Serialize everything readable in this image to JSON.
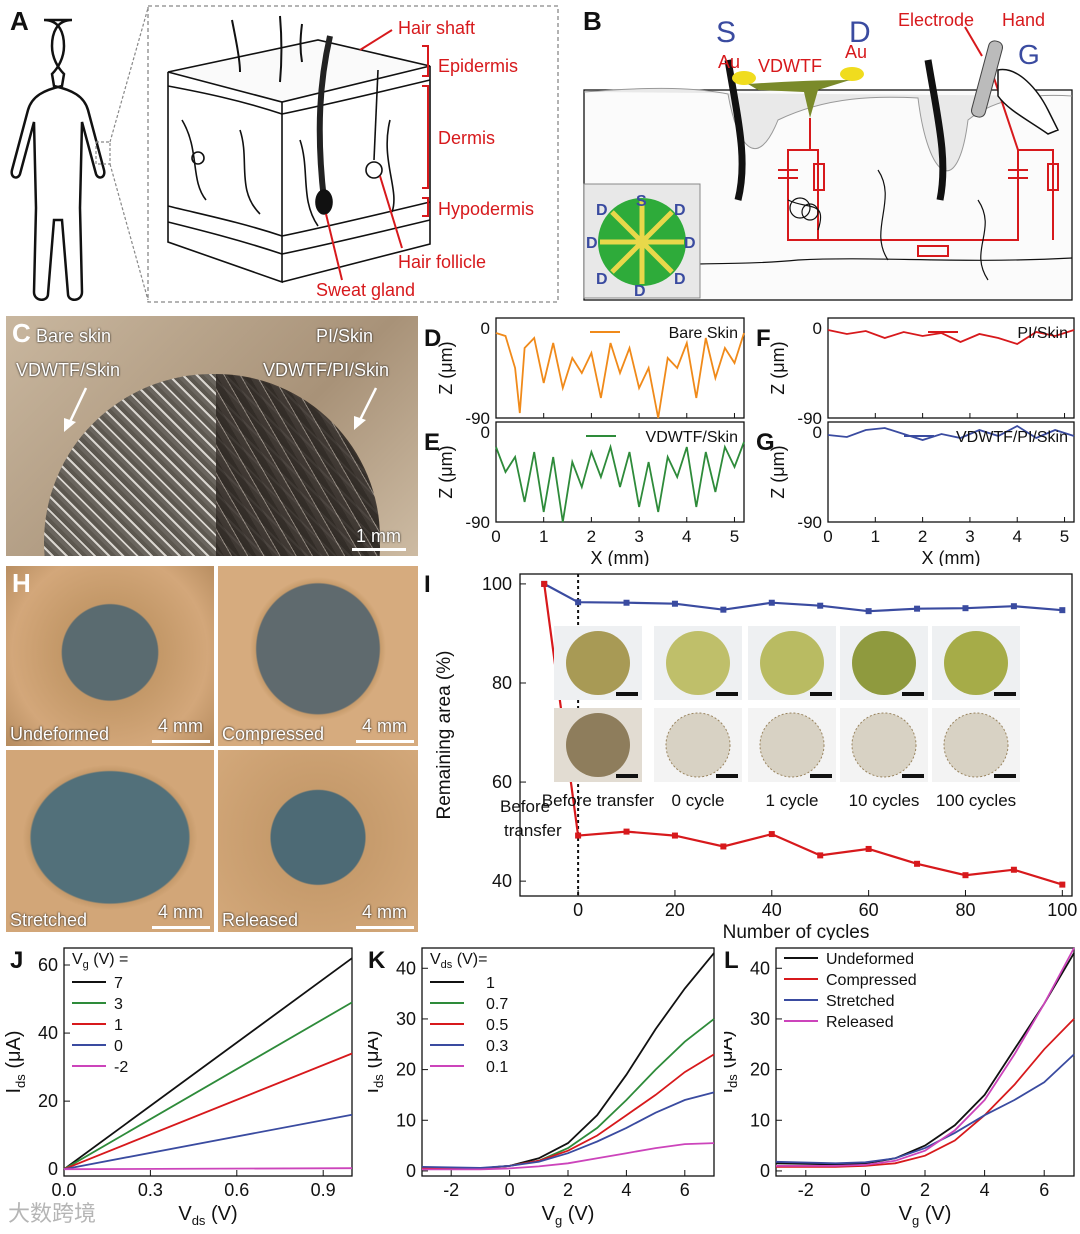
{
  "panel_letters": {
    "A": "A",
    "B": "B",
    "C": "C",
    "D": "D",
    "E": "E",
    "F": "F",
    "G": "G",
    "H": "H",
    "I": "I",
    "J": "J",
    "K": "K",
    "L": "L"
  },
  "panelA": {
    "labels": [
      "Hair shaft",
      "Epidermis",
      "Dermis",
      "Hypodermis",
      "Hair follicle",
      "Sweat gland"
    ],
    "color": "#d7191c"
  },
  "panelB": {
    "S": "S",
    "D": "D",
    "G": "G",
    "au_left": "Au",
    "au_right": "Au",
    "vdwtf": "VDWTF",
    "electrode": "Electrode",
    "hand": "Hand",
    "inset_letters": [
      "S",
      "D",
      "D",
      "D",
      "D",
      "D",
      "D",
      "D"
    ]
  },
  "panelC": {
    "tl1": "Bare skin",
    "tl2": "VDWTF/Skin",
    "tr1": "PI/Skin",
    "tr2": "VDWTF/PI/Skin",
    "scale": "1 mm"
  },
  "panelH": {
    "captions": [
      "Undeformed",
      "Compressed",
      "Stretched",
      "Released"
    ],
    "scale": "4 mm"
  },
  "profiles": {
    "ylabel": "Z (μm)",
    "xlabel": "X (mm)",
    "yticks": [
      "0",
      "-90"
    ],
    "xticks": [
      "0",
      "1",
      "2",
      "3",
      "4",
      "5"
    ]
  },
  "chart_data": [
    {
      "panel": "D",
      "type": "line",
      "series": [
        {
          "name": "Bare Skin",
          "color": "#f08a1a",
          "x": [
            0,
            0.2,
            0.4,
            0.5,
            0.6,
            0.8,
            1.0,
            1.2,
            1.4,
            1.6,
            1.8,
            2.0,
            2.2,
            2.4,
            2.6,
            2.8,
            3.0,
            3.2,
            3.4,
            3.6,
            3.8,
            4.0,
            4.2,
            4.4,
            4.6,
            4.8,
            5.0,
            5.2
          ],
          "y": [
            -5,
            -8,
            -40,
            -85,
            -20,
            -10,
            -55,
            -15,
            -60,
            -30,
            -45,
            -25,
            -70,
            -15,
            -45,
            -20,
            -60,
            -40,
            -90,
            -30,
            -40,
            -15,
            -70,
            -10,
            -50,
            -20,
            -35,
            -5
          ]
        }
      ],
      "xlim": [
        0,
        5.2
      ],
      "ylim": [
        -90,
        10
      ]
    },
    {
      "panel": "E",
      "type": "line",
      "series": [
        {
          "name": "VDWTF/Skin",
          "color": "#2e8b3a",
          "x": [
            0,
            0.2,
            0.4,
            0.6,
            0.8,
            1.0,
            1.2,
            1.4,
            1.6,
            1.8,
            2.0,
            2.2,
            2.4,
            2.6,
            2.8,
            3.0,
            3.2,
            3.4,
            3.6,
            3.8,
            4.0,
            4.2,
            4.4,
            4.6,
            4.8,
            5.0,
            5.2
          ],
          "y": [
            -15,
            -40,
            -25,
            -70,
            -20,
            -80,
            -25,
            -90,
            -30,
            -55,
            -20,
            -45,
            -15,
            -55,
            -20,
            -75,
            -30,
            -80,
            -25,
            -45,
            -15,
            -75,
            -20,
            -60,
            -15,
            -35,
            -10
          ]
        }
      ],
      "xlim": [
        0,
        5.2
      ],
      "ylim": [
        -90,
        10
      ]
    },
    {
      "panel": "F",
      "type": "line",
      "series": [
        {
          "name": "PI/Skin",
          "color": "#d7191c",
          "x": [
            0,
            0.4,
            0.8,
            1.2,
            1.6,
            2.0,
            2.4,
            2.8,
            3.2,
            3.6,
            4.0,
            4.4,
            4.8,
            5.2
          ],
          "y": [
            -2,
            -6,
            -3,
            -10,
            -4,
            -8,
            -5,
            -14,
            -6,
            -10,
            -16,
            -4,
            -8,
            -2
          ]
        }
      ],
      "xlim": [
        0,
        5.2
      ],
      "ylim": [
        -90,
        10
      ]
    },
    {
      "panel": "G",
      "type": "line",
      "series": [
        {
          "name": "VDWTF/PI/Skin",
          "color": "#3a4ba0",
          "x": [
            0,
            0.4,
            0.8,
            1.2,
            1.6,
            2.0,
            2.4,
            2.8,
            3.2,
            3.6,
            4.0,
            4.4,
            4.8,
            5.2
          ],
          "y": [
            -3,
            -5,
            2,
            4,
            -2,
            -8,
            -2,
            -6,
            2,
            -4,
            6,
            -6,
            2,
            -4
          ]
        }
      ],
      "xlim": [
        0,
        5.2
      ],
      "ylim": [
        -90,
        10
      ]
    },
    {
      "panel": "I",
      "type": "line",
      "xlabel": "Number of cycles",
      "ylabel": "Remaining area (%)",
      "xlim": [
        -12,
        102
      ],
      "ylim": [
        37,
        102
      ],
      "xticks": [
        0,
        20,
        40,
        60,
        80,
        100
      ],
      "yticks": [
        40,
        60,
        80,
        100
      ],
      "vline_x": 0,
      "annotation": "Before\ntransfer",
      "series": [
        {
          "color": "#3a4ba0",
          "x": [
            -7,
            0,
            10,
            20,
            30,
            40,
            50,
            60,
            70,
            80,
            90,
            100
          ],
          "y": [
            100,
            96.3,
            96.2,
            96.0,
            94.8,
            96.2,
            95.6,
            94.5,
            95.0,
            95.1,
            95.5,
            94.7
          ]
        },
        {
          "color": "#d7191c",
          "x": [
            -7,
            0,
            10,
            20,
            30,
            40,
            50,
            60,
            70,
            80,
            90,
            100
          ],
          "y": [
            100,
            49.2,
            50.0,
            49.2,
            47.0,
            49.5,
            45.2,
            46.5,
            43.5,
            41.2,
            42.3,
            39.3
          ]
        }
      ],
      "inset_captions": [
        "Before transfer",
        "0 cycle",
        "1 cycle",
        "10 cycles",
        "100 cycles"
      ]
    },
    {
      "panel": "J",
      "type": "line",
      "xlabel_main": "V",
      "xlabel_sub": "ds",
      "xlabel_unit": " (V)",
      "ylabel_main": "I",
      "ylabel_sub": "ds",
      "ylabel_unit": " (μA)",
      "legend_title_main": "V",
      "legend_title_sub": "g",
      "legend_title_rest": " (V) =",
      "xlim": [
        0,
        1.0
      ],
      "ylim": [
        -2,
        65
      ],
      "xticks": [
        "0.0",
        "0.3",
        "0.6",
        "0.9"
      ],
      "yticks": [
        "0",
        "20",
        "40",
        "60"
      ],
      "series": [
        {
          "name": "7",
          "color": "#111111",
          "x": [
            0,
            1.0
          ],
          "y": [
            0,
            62
          ]
        },
        {
          "name": "3",
          "color": "#2e8b3a",
          "x": [
            0,
            1.0
          ],
          "y": [
            0,
            49
          ]
        },
        {
          "name": "1",
          "color": "#d7191c",
          "x": [
            0,
            1.0
          ],
          "y": [
            0,
            34
          ]
        },
        {
          "name": "0",
          "color": "#3a4ba0",
          "x": [
            0,
            1.0
          ],
          "y": [
            0,
            16
          ]
        },
        {
          "name": "-2",
          "color": "#cc44bb",
          "x": [
            0,
            1.0
          ],
          "y": [
            0,
            0.3
          ]
        }
      ]
    },
    {
      "panel": "K",
      "type": "line",
      "xlabel_main": "V",
      "xlabel_sub": "g",
      "xlabel_unit": " (V)",
      "ylabel_main": "I",
      "ylabel_sub": "ds",
      "ylabel_unit": " (μA)",
      "legend_title_main": "V",
      "legend_title_sub": "ds",
      "legend_title_rest": " (V)=",
      "xlim": [
        -3,
        7
      ],
      "ylim": [
        -1,
        44
      ],
      "xticks": [
        "-2",
        "0",
        "2",
        "4",
        "6"
      ],
      "yticks": [
        "0",
        "10",
        "20",
        "30",
        "40"
      ],
      "series": [
        {
          "name": "1",
          "color": "#111111",
          "x": [
            -3,
            -1,
            0,
            1,
            2,
            3,
            4,
            5,
            6,
            7
          ],
          "y": [
            0.5,
            0.5,
            1,
            2.5,
            5.5,
            11,
            19,
            28,
            36,
            43
          ]
        },
        {
          "name": "0.7",
          "color": "#2e8b3a",
          "x": [
            -3,
            -1,
            0,
            1,
            2,
            3,
            4,
            5,
            6,
            7
          ],
          "y": [
            0.5,
            0.5,
            1,
            2,
            4.5,
            8.5,
            14,
            20,
            25.5,
            30
          ]
        },
        {
          "name": "0.5",
          "color": "#d7191c",
          "x": [
            -3,
            -1,
            0,
            1,
            2,
            3,
            4,
            5,
            6,
            7
          ],
          "y": [
            0.5,
            0.5,
            1,
            2,
            4,
            7,
            11,
            15,
            19.5,
            23
          ]
        },
        {
          "name": "0.3",
          "color": "#3a4ba0",
          "x": [
            -3,
            -1,
            0,
            1,
            2,
            3,
            4,
            5,
            6,
            7
          ],
          "y": [
            0.8,
            0.6,
            1,
            1.8,
            3.5,
            5.8,
            8.5,
            11.5,
            14,
            15.5
          ]
        },
        {
          "name": "0.1",
          "color": "#cc44bb",
          "x": [
            -3,
            -1,
            0,
            1,
            2,
            3,
            4,
            5,
            6,
            7
          ],
          "y": [
            0.3,
            0.3,
            0.5,
            0.9,
            1.5,
            2.5,
            3.5,
            4.5,
            5.3,
            5.5
          ]
        }
      ]
    },
    {
      "panel": "L",
      "type": "line",
      "xlabel_main": "V",
      "xlabel_sub": "g",
      "xlabel_unit": " (V)",
      "ylabel_main": "I",
      "ylabel_sub": "ds",
      "ylabel_unit": " (μA)",
      "xlim": [
        -3,
        7
      ],
      "ylim": [
        -1,
        44
      ],
      "xticks": [
        "-2",
        "0",
        "2",
        "4",
        "6"
      ],
      "yticks": [
        "0",
        "10",
        "20",
        "30",
        "40"
      ],
      "series": [
        {
          "name": "Undeformed",
          "color": "#111111",
          "x": [
            -3,
            -1,
            0,
            1,
            2,
            3,
            4,
            5,
            6,
            7
          ],
          "y": [
            1.5,
            1.3,
            1.5,
            2.5,
            5,
            9,
            15,
            24,
            33,
            43
          ]
        },
        {
          "name": "Compressed",
          "color": "#d7191c",
          "x": [
            -3,
            -1,
            0,
            1,
            2,
            3,
            4,
            5,
            6,
            7
          ],
          "y": [
            0.8,
            0.8,
            1,
            1.5,
            3,
            6,
            11,
            17,
            24,
            30
          ]
        },
        {
          "name": "Stretched",
          "color": "#3a4ba0",
          "x": [
            -3,
            -1,
            0,
            1,
            2,
            3,
            4,
            5,
            6,
            7
          ],
          "y": [
            1.8,
            1.5,
            1.7,
            2.5,
            4.5,
            7.5,
            11,
            14,
            17.5,
            23
          ]
        },
        {
          "name": "Released",
          "color": "#cc44bb",
          "x": [
            -3,
            -1,
            0,
            1,
            2,
            3,
            4,
            5,
            6,
            7
          ],
          "y": [
            1.0,
            1.0,
            1.2,
            2,
            4,
            8,
            14,
            23,
            33,
            44
          ]
        }
      ]
    }
  ],
  "watermark": "大数跨境"
}
